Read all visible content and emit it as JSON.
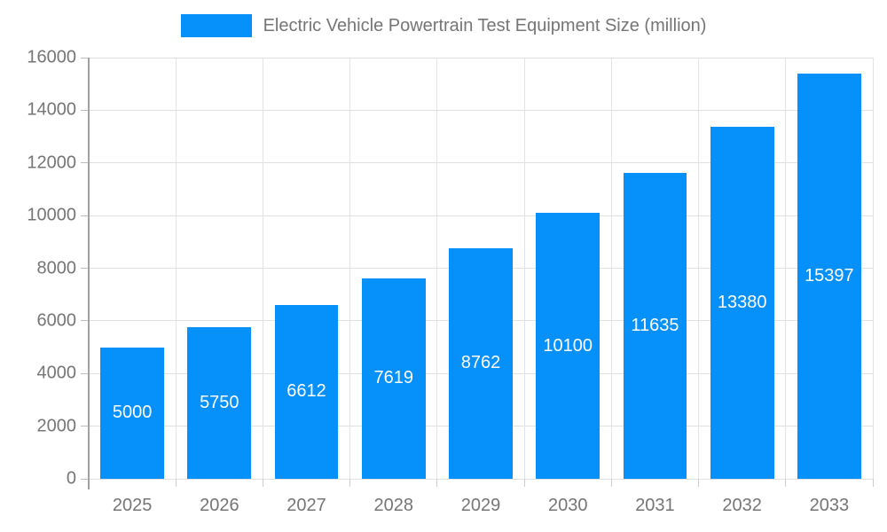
{
  "chart_data": {
    "type": "bar",
    "title": "Electric Vehicle Powertrain Test Equipment Size (million)",
    "categories": [
      "2025",
      "2026",
      "2027",
      "2028",
      "2029",
      "2030",
      "2031",
      "2032",
      "2033"
    ],
    "values": [
      5000,
      5750,
      6612,
      7619,
      8762,
      10100,
      11635,
      13380,
      15397
    ],
    "xlabel": "",
    "ylabel": "",
    "ylim": [
      0,
      16000
    ],
    "yticks": [
      0,
      2000,
      4000,
      6000,
      8000,
      10000,
      12000,
      14000,
      16000
    ],
    "grid": true,
    "legend_position": "top",
    "value_labels_position": "inside-center",
    "colors": {
      "bar": "#0690fa",
      "value_label": "#ffffff",
      "axis_text": "#757575",
      "legend_text": "#757575",
      "grid_line": "#e0e0e0",
      "axis_line": "#a0a0a0",
      "background": "#ffffff"
    }
  }
}
